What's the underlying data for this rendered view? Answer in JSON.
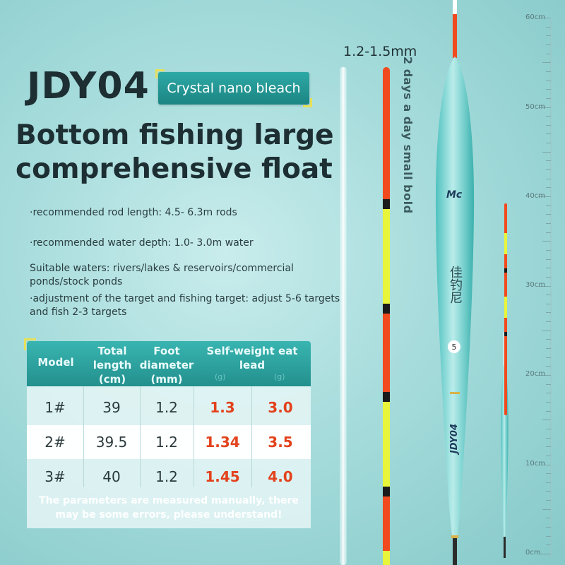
{
  "model": "JDY04",
  "badge": "Crystal nano bleach",
  "headline": [
    "Bottom fishing large",
    "comprehensive float"
  ],
  "specs": [
    "·recommended rod length: 4.5- 6.3m rods",
    "·recommended water depth: 1.0- 3.0m water",
    "Suitable waters: rivers/lakes & reservoirs/commercial ponds/stock ponds",
    "·adjustment of the target and fishing target: adjust 5-6 targets and fish 2-3 targets"
  ],
  "table": {
    "headers": {
      "model": "Model",
      "total_length": "Total length (cm)",
      "foot_diameter": "Foot diameter (mm)",
      "self_weight": "Self-weight eat lead",
      "unit_a": "(g)",
      "unit_b": "(g)"
    },
    "rows": [
      {
        "model": "1#",
        "length": "39",
        "diameter": "1.2",
        "self_weight": "1.3",
        "lead": "3.0"
      },
      {
        "model": "2#",
        "length": "39.5",
        "diameter": "1.2",
        "self_weight": "1.34",
        "lead": "3.5"
      },
      {
        "model": "3#",
        "length": "40",
        "diameter": "1.2",
        "self_weight": "1.45",
        "lead": "4.0"
      }
    ],
    "note": "The parameters are measured manually, there may be some errors, please understand!"
  },
  "float": {
    "size_label": "1.2-1.5mm",
    "vertical_caption": "2 days a day small bold",
    "brand_mark": "Mc",
    "chinese_name": "佳钓尼",
    "number": "5",
    "body_text": "JDY04"
  },
  "ruler": [
    "60cm",
    "50cm",
    "40cm",
    "30cm",
    "20cm",
    "10cm",
    "0cm"
  ],
  "colors": {
    "teal": "#23908d",
    "accent": "#e6e05a",
    "red": "#e2421c",
    "tip_orange": "#f04a1e",
    "tip_yellow": "#e8f53a"
  }
}
